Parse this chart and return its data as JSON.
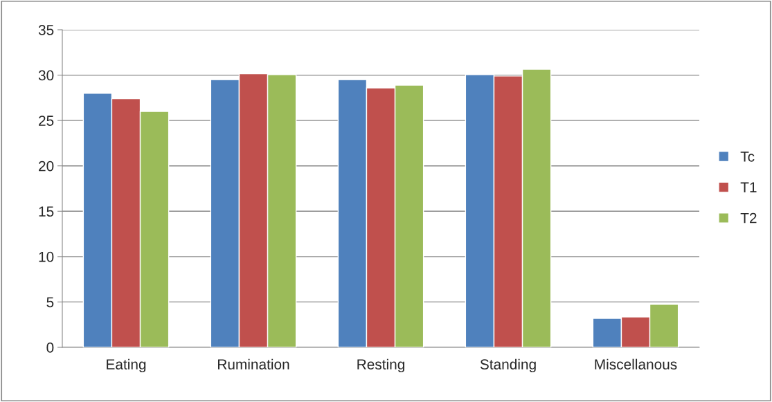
{
  "chart_data": {
    "type": "bar",
    "categories": [
      "Eating",
      "Rumination",
      "Resting",
      "Standing",
      "Miscellanous"
    ],
    "series": [
      {
        "name": "Tc",
        "color": "#4f81bd",
        "values": [
          28.0,
          29.5,
          29.5,
          30.05,
          3.2
        ]
      },
      {
        "name": "T1",
        "color": "#c0504d",
        "values": [
          27.4,
          30.15,
          28.6,
          29.9,
          3.35
        ]
      },
      {
        "name": "T2",
        "color": "#9bbb59",
        "values": [
          26.0,
          30.05,
          28.9,
          30.65,
          4.75
        ]
      }
    ],
    "ylim": [
      0,
      35
    ],
    "yticks": [
      0,
      5,
      10,
      15,
      20,
      25,
      30,
      35
    ],
    "grid": "y",
    "legend": "right"
  }
}
